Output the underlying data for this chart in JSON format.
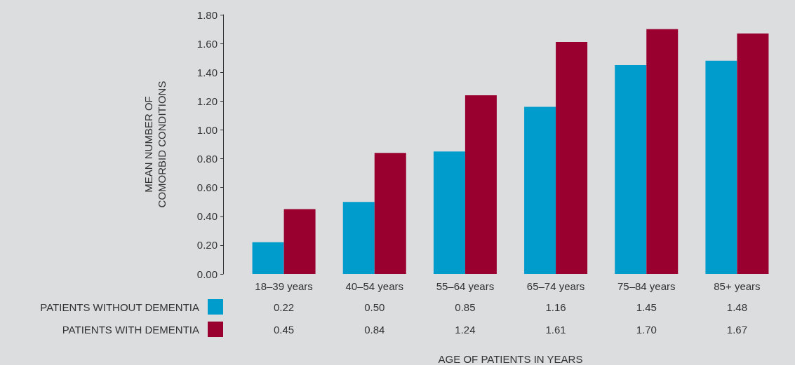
{
  "chart_data": {
    "type": "bar",
    "annotations": [
      "AGE OF PATIENTS IN YEARS"
    ],
    "ylabel": "MEAN NUMBER OF\nCOMORBID CONDITIONS",
    "categories": [
      "18–39 years",
      "40–54 years",
      "55–64 years",
      "65–74 years",
      "75–84 years",
      "85+ years"
    ],
    "series": [
      {
        "name": "PATIENTS WITHOUT DEMENTIA",
        "color": "#009ccc",
        "values": [
          0.22,
          0.5,
          0.85,
          1.16,
          1.45,
          1.48
        ],
        "value_labels": [
          "0.22",
          "0.50",
          "0.85",
          "1.16",
          "1.45",
          "1.48"
        ]
      },
      {
        "name": "PATIENTS WITH DEMENTIA",
        "color": "#990030",
        "values": [
          0.45,
          0.84,
          1.24,
          1.61,
          1.7,
          1.67
        ],
        "value_labels": [
          "0.45",
          "0.84",
          "1.24",
          "1.61",
          "1.70",
          "1.67"
        ]
      }
    ],
    "ylim": [
      0,
      1.8
    ],
    "yticks": [
      {
        "value": 0,
        "label": "0.00"
      },
      {
        "value": 0.2,
        "label": "0.20"
      },
      {
        "value": 0.4,
        "label": "0.40"
      },
      {
        "value": 0.6,
        "label": "0.60"
      },
      {
        "value": 0.8,
        "label": "0.80"
      },
      {
        "value": 1.0,
        "label": "1.00"
      },
      {
        "value": 1.2,
        "label": "1.20"
      },
      {
        "value": 1.4,
        "label": "1.40"
      },
      {
        "value": 1.6,
        "label": "1.60"
      },
      {
        "value": 1.8,
        "label": "1.80"
      }
    ],
    "legend": "bottom left"
  }
}
